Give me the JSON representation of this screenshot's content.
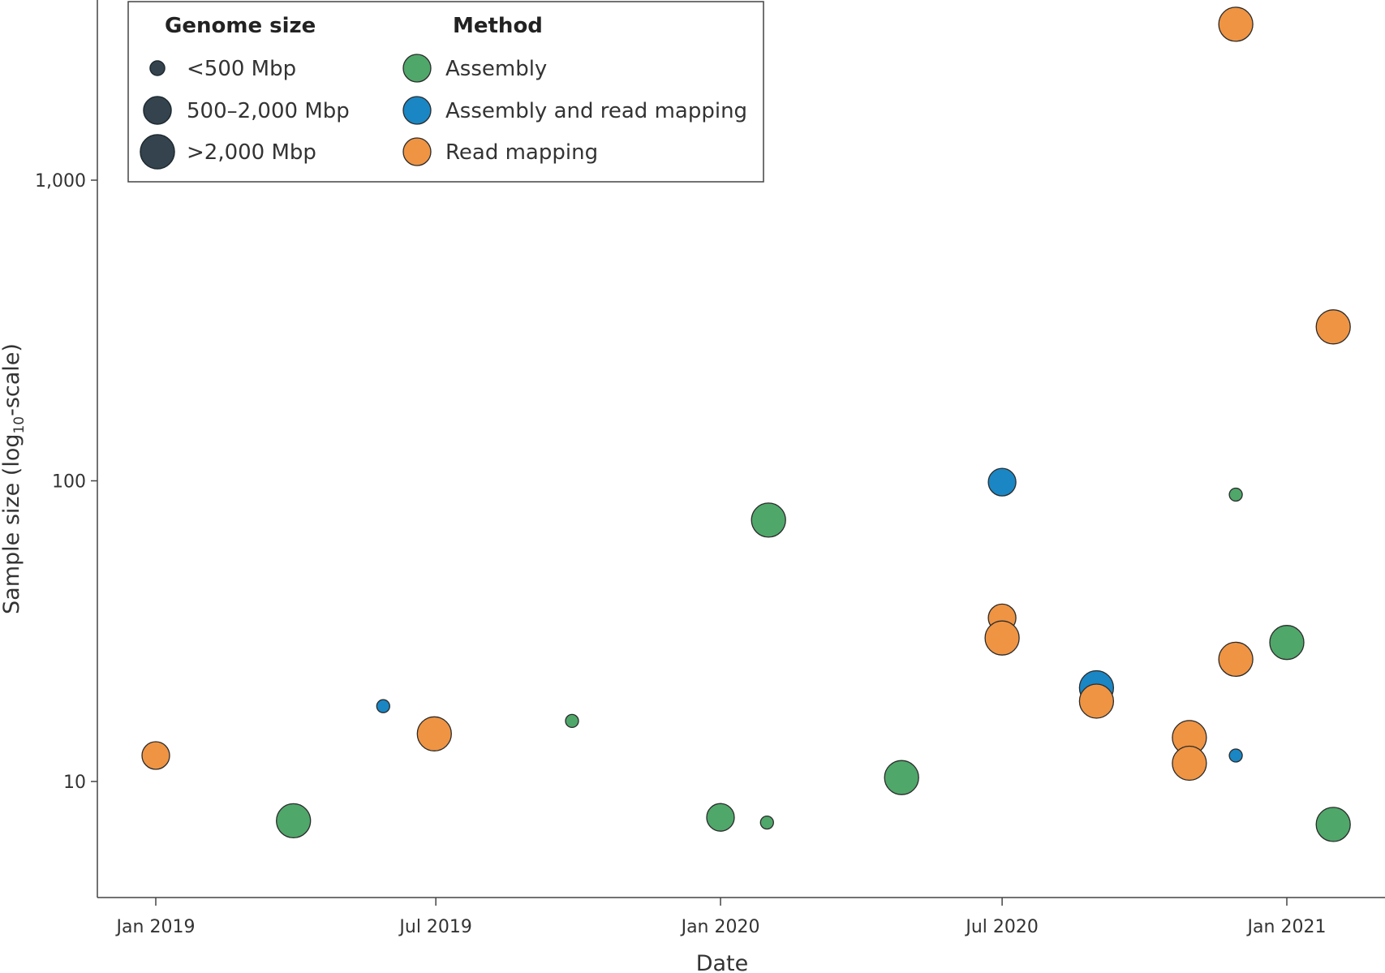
{
  "chart_data": {
    "type": "scatter",
    "xlabel": "Date",
    "ylabel_main": "Sample size (log",
    "ylabel_sub": "10",
    "ylabel_tail": "-scale)",
    "y_scale": "log10",
    "ylim": [
      4.2,
      4000
    ],
    "xlim": [
      "2018-12-15",
      "2021-03-31"
    ],
    "grid": false,
    "legend_placement": "top-left",
    "x_ticks": [
      {
        "date": "2019-01-01",
        "label": "Jan 2019"
      },
      {
        "date": "2019-07-01",
        "label": "Jul 2019"
      },
      {
        "date": "2020-01-01",
        "label": "Jan 2020"
      },
      {
        "date": "2020-07-01",
        "label": "Jul 2020"
      },
      {
        "date": "2021-01-01",
        "label": "Jan 2021"
      }
    ],
    "y_ticks": [
      {
        "value": 10,
        "label": "10"
      },
      {
        "value": 100,
        "label": "100"
      },
      {
        "value": 1000,
        "label": "1,000"
      }
    ],
    "legend": {
      "size_title": "Genome size",
      "method_title": "Method",
      "sizes": [
        {
          "key": "small",
          "label": "<500 Mbp"
        },
        {
          "key": "medium",
          "label": "500–2,000 Mbp"
        },
        {
          "key": "large",
          "label": ">2,000 Mbp"
        }
      ],
      "methods": [
        {
          "key": "assembly",
          "label": "Assembly",
          "color": "#4fa76a"
        },
        {
          "key": "both",
          "label": "Assembly and read mapping",
          "color": "#1a86c4"
        },
        {
          "key": "read",
          "label": "Read mapping",
          "color": "#ef9443"
        }
      ]
    },
    "points": [
      {
        "date": "2019-01-01",
        "y": 12.2,
        "size": "medium",
        "method": "read"
      },
      {
        "date": "2019-03-31",
        "y": 7.4,
        "size": "large",
        "method": "assembly"
      },
      {
        "date": "2019-05-28",
        "y": 17.8,
        "size": "small",
        "method": "both"
      },
      {
        "date": "2019-06-30",
        "y": 14.4,
        "size": "large",
        "method": "read"
      },
      {
        "date": "2019-09-27",
        "y": 15.9,
        "size": "small",
        "method": "assembly"
      },
      {
        "date": "2020-01-01",
        "y": 7.6,
        "size": "medium",
        "method": "assembly"
      },
      {
        "date": "2020-01-31",
        "y": 7.3,
        "size": "small",
        "method": "assembly"
      },
      {
        "date": "2020-02-01",
        "y": 74,
        "size": "large",
        "method": "assembly"
      },
      {
        "date": "2020-04-27",
        "y": 10.3,
        "size": "large",
        "method": "assembly"
      },
      {
        "date": "2020-07-01",
        "y": 99,
        "size": "medium",
        "method": "both"
      },
      {
        "date": "2020-07-01",
        "y": 35,
        "size": "medium",
        "method": "read"
      },
      {
        "date": "2020-07-01",
        "y": 30,
        "size": "large",
        "method": "read"
      },
      {
        "date": "2020-08-31",
        "y": 20.5,
        "size": "large",
        "method": "both"
      },
      {
        "date": "2020-08-31",
        "y": 18.5,
        "size": "large",
        "method": "read"
      },
      {
        "date": "2020-10-30",
        "y": 14,
        "size": "large",
        "method": "read"
      },
      {
        "date": "2020-10-30",
        "y": 11.5,
        "size": "large",
        "method": "read"
      },
      {
        "date": "2020-11-29",
        "y": 3300,
        "size": "large",
        "method": "read"
      },
      {
        "date": "2020-11-29",
        "y": 90,
        "size": "small",
        "method": "assembly"
      },
      {
        "date": "2020-11-29",
        "y": 25.5,
        "size": "large",
        "method": "read"
      },
      {
        "date": "2020-11-29",
        "y": 12.2,
        "size": "small",
        "method": "both"
      },
      {
        "date": "2021-01-01",
        "y": 29,
        "size": "large",
        "method": "assembly"
      },
      {
        "date": "2021-01-31",
        "y": 325,
        "size": "large",
        "method": "read"
      },
      {
        "date": "2021-01-31",
        "y": 7.2,
        "size": "large",
        "method": "assembly"
      }
    ]
  }
}
